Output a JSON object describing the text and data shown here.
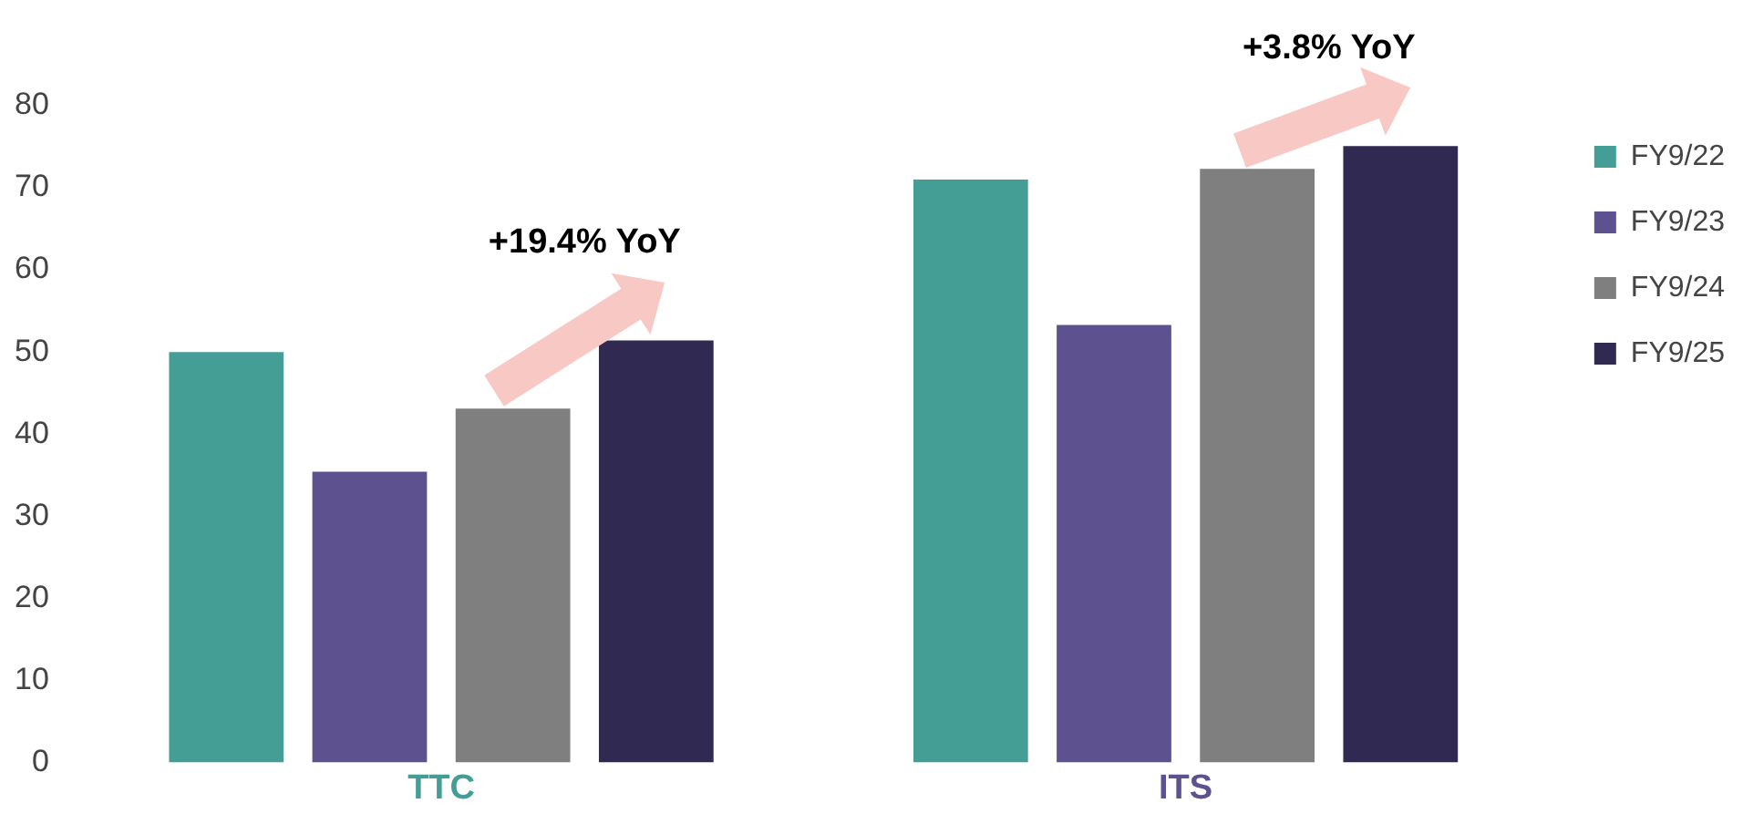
{
  "chart_data": {
    "type": "bar",
    "categories": [
      "TTC",
      "ITS"
    ],
    "series": [
      {
        "name": "FY9/22",
        "color": "#449e96",
        "values": [
          50,
          71
        ]
      },
      {
        "name": "FY9/23",
        "color": "#5e5190",
        "values": [
          35.4,
          53.3
        ]
      },
      {
        "name": "FY9/24",
        "color": "#7f7f7f",
        "values": [
          43.1,
          72.3
        ]
      },
      {
        "name": "FY9/25",
        "color": "#302a52",
        "values": [
          51.4,
          75.1
        ]
      }
    ],
    "ylim": [
      0,
      80
    ],
    "yticks": [
      0,
      10,
      20,
      30,
      40,
      50,
      60,
      70,
      80
    ],
    "grid": false,
    "legend": "top right",
    "annotations": [
      "+19.4% YoY",
      "+3.8% YoY"
    ]
  }
}
